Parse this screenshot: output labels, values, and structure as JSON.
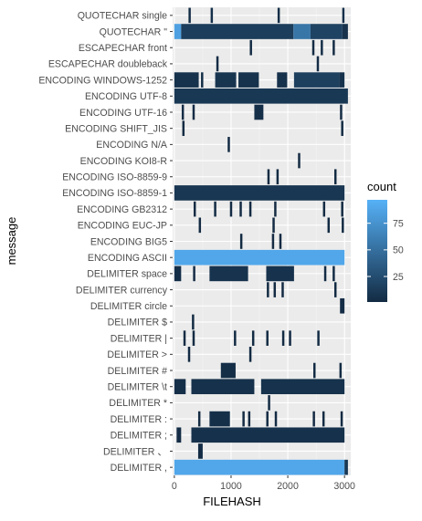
{
  "chart_data": {
    "type": "heatmap",
    "xlabel": "FILEHASH",
    "ylabel": "message",
    "xlim": [
      -30,
      3110
    ],
    "x_ticks": [
      0,
      1000,
      2000,
      3000
    ],
    "categories": [
      "QUOTECHAR single",
      "QUOTECHAR \"",
      "ESCAPECHAR front",
      "ESCAPECHAR doubleback",
      "ENCODING WINDOWS-1252",
      "ENCODING UTF-8",
      "ENCODING UTF-16",
      "ENCODING SHIFT_JIS",
      "ENCODING N/A",
      "ENCODING KOI8-R",
      "ENCODING ISO-8859-9",
      "ENCODING ISO-8859-1",
      "ENCODING GB2312",
      "ENCODING EUC-JP",
      "ENCODING BIG5",
      "ENCODING ASCII",
      "DELIMITER space",
      "DELIMITER currency",
      "DELIMITER circle",
      "DELIMITER $",
      "DELIMITER |",
      "DELIMITER >",
      "DELIMITER #",
      "DELIMITER \\t",
      "DELIMITER *",
      "DELIMITER :",
      "DELIMITER ;",
      "DELIMITER 、",
      "DELIMITER ,"
    ],
    "legend": {
      "title": "count",
      "breaks": [
        25,
        50,
        75
      ],
      "min": 1,
      "max": 97,
      "position": "right"
    },
    "colors": {
      "low": "#132B43",
      "high": "#56B1F7",
      "panel": "#EBEBEB",
      "grid_major": "#FFFFFF",
      "grid_minor": "#F4F4F4",
      "text": "#4D4D4D"
    },
    "cells": [
      {
        "row": 0,
        "x0": 250,
        "x1": 290,
        "count": 3
      },
      {
        "row": 0,
        "x0": 640,
        "x1": 680,
        "count": 4
      },
      {
        "row": 0,
        "x0": 1820,
        "x1": 1860,
        "count": 3
      },
      {
        "row": 0,
        "x0": 2960,
        "x1": 3000,
        "count": 4
      },
      {
        "row": 1,
        "x0": 0,
        "x1": 120,
        "count": 85
      },
      {
        "row": 1,
        "x0": 120,
        "x1": 2100,
        "count": 14
      },
      {
        "row": 1,
        "x0": 2100,
        "x1": 2400,
        "count": 55
      },
      {
        "row": 1,
        "x0": 2400,
        "x1": 2960,
        "count": 18
      },
      {
        "row": 1,
        "x0": 2960,
        "x1": 3060,
        "count": 6
      },
      {
        "row": 2,
        "x0": 1330,
        "x1": 1370,
        "count": 2
      },
      {
        "row": 2,
        "x0": 2430,
        "x1": 2470,
        "count": 2
      },
      {
        "row": 2,
        "x0": 2580,
        "x1": 2620,
        "count": 3
      },
      {
        "row": 2,
        "x0": 2790,
        "x1": 2830,
        "count": 2
      },
      {
        "row": 3,
        "x0": 740,
        "x1": 780,
        "count": 2
      },
      {
        "row": 3,
        "x0": 2510,
        "x1": 2550,
        "count": 2
      },
      {
        "row": 4,
        "x0": 0,
        "x1": 430,
        "count": 6
      },
      {
        "row": 4,
        "x0": 470,
        "x1": 510,
        "count": 3
      },
      {
        "row": 4,
        "x0": 720,
        "x1": 1090,
        "count": 8
      },
      {
        "row": 4,
        "x0": 1130,
        "x1": 1490,
        "count": 6
      },
      {
        "row": 4,
        "x0": 1810,
        "x1": 1990,
        "count": 5
      },
      {
        "row": 4,
        "x0": 2110,
        "x1": 2910,
        "count": 16
      },
      {
        "row": 4,
        "x0": 2910,
        "x1": 3000,
        "count": 5
      },
      {
        "row": 5,
        "x0": 0,
        "x1": 3060,
        "count": 10
      },
      {
        "row": 6,
        "x0": 130,
        "x1": 170,
        "count": 2
      },
      {
        "row": 6,
        "x0": 320,
        "x1": 360,
        "count": 2
      },
      {
        "row": 6,
        "x0": 1410,
        "x1": 1570,
        "count": 4
      },
      {
        "row": 6,
        "x0": 2920,
        "x1": 2960,
        "count": 2
      },
      {
        "row": 7,
        "x0": 140,
        "x1": 180,
        "count": 1
      },
      {
        "row": 7,
        "x0": 2940,
        "x1": 2980,
        "count": 1
      },
      {
        "row": 8,
        "x0": 940,
        "x1": 980,
        "count": 1
      },
      {
        "row": 9,
        "x0": 2180,
        "x1": 2220,
        "count": 1
      },
      {
        "row": 10,
        "x0": 1640,
        "x1": 1680,
        "count": 1
      },
      {
        "row": 10,
        "x0": 1800,
        "x1": 1840,
        "count": 1
      },
      {
        "row": 10,
        "x0": 2820,
        "x1": 2860,
        "count": 1
      },
      {
        "row": 11,
        "x0": 0,
        "x1": 3000,
        "count": 9
      },
      {
        "row": 12,
        "x0": 340,
        "x1": 380,
        "count": 1
      },
      {
        "row": 12,
        "x0": 700,
        "x1": 740,
        "count": 1
      },
      {
        "row": 12,
        "x0": 980,
        "x1": 1020,
        "count": 1
      },
      {
        "row": 12,
        "x0": 1150,
        "x1": 1190,
        "count": 1
      },
      {
        "row": 12,
        "x0": 1320,
        "x1": 1360,
        "count": 1
      },
      {
        "row": 12,
        "x0": 1760,
        "x1": 1800,
        "count": 1
      },
      {
        "row": 12,
        "x0": 2620,
        "x1": 2660,
        "count": 1
      },
      {
        "row": 12,
        "x0": 2940,
        "x1": 2980,
        "count": 1
      },
      {
        "row": 13,
        "x0": 430,
        "x1": 470,
        "count": 1
      },
      {
        "row": 13,
        "x0": 1730,
        "x1": 1770,
        "count": 1
      },
      {
        "row": 13,
        "x0": 2700,
        "x1": 2740,
        "count": 1
      },
      {
        "row": 13,
        "x0": 2950,
        "x1": 2990,
        "count": 1
      },
      {
        "row": 14,
        "x0": 1160,
        "x1": 1200,
        "count": 1
      },
      {
        "row": 14,
        "x0": 1720,
        "x1": 1760,
        "count": 1
      },
      {
        "row": 14,
        "x0": 1850,
        "x1": 1890,
        "count": 1
      },
      {
        "row": 15,
        "x0": 0,
        "x1": 3000,
        "count": 90
      },
      {
        "row": 16,
        "x0": 0,
        "x1": 120,
        "count": 3
      },
      {
        "row": 16,
        "x0": 330,
        "x1": 370,
        "count": 2
      },
      {
        "row": 16,
        "x0": 620,
        "x1": 1300,
        "count": 7
      },
      {
        "row": 16,
        "x0": 1620,
        "x1": 2110,
        "count": 6
      },
      {
        "row": 16,
        "x0": 2640,
        "x1": 2680,
        "count": 2
      },
      {
        "row": 16,
        "x0": 2790,
        "x1": 2830,
        "count": 2
      },
      {
        "row": 17,
        "x0": 1630,
        "x1": 1670,
        "count": 1
      },
      {
        "row": 17,
        "x0": 1750,
        "x1": 1790,
        "count": 1
      },
      {
        "row": 17,
        "x0": 1890,
        "x1": 1930,
        "count": 1
      },
      {
        "row": 17,
        "x0": 2820,
        "x1": 2860,
        "count": 1
      },
      {
        "row": 18,
        "x0": 2920,
        "x1": 3000,
        "count": 2
      },
      {
        "row": 19,
        "x0": 310,
        "x1": 350,
        "count": 1
      },
      {
        "row": 20,
        "x0": 160,
        "x1": 200,
        "count": 1
      },
      {
        "row": 20,
        "x0": 320,
        "x1": 360,
        "count": 1
      },
      {
        "row": 20,
        "x0": 1050,
        "x1": 1090,
        "count": 1
      },
      {
        "row": 20,
        "x0": 1370,
        "x1": 1410,
        "count": 1
      },
      {
        "row": 20,
        "x0": 1620,
        "x1": 1660,
        "count": 1
      },
      {
        "row": 20,
        "x0": 1900,
        "x1": 1940,
        "count": 1
      },
      {
        "row": 20,
        "x0": 2020,
        "x1": 2060,
        "count": 1
      },
      {
        "row": 20,
        "x0": 2520,
        "x1": 2560,
        "count": 1
      },
      {
        "row": 21,
        "x0": 240,
        "x1": 280,
        "count": 1
      },
      {
        "row": 21,
        "x0": 1320,
        "x1": 1360,
        "count": 1
      },
      {
        "row": 22,
        "x0": 820,
        "x1": 1080,
        "count": 3
      },
      {
        "row": 22,
        "x0": 2450,
        "x1": 2490,
        "count": 1
      },
      {
        "row": 22,
        "x0": 2910,
        "x1": 2950,
        "count": 1
      },
      {
        "row": 23,
        "x0": 0,
        "x1": 200,
        "count": 4
      },
      {
        "row": 23,
        "x0": 300,
        "x1": 1410,
        "count": 5
      },
      {
        "row": 23,
        "x0": 1530,
        "x1": 3000,
        "count": 6
      },
      {
        "row": 24,
        "x0": 1650,
        "x1": 1690,
        "count": 1
      },
      {
        "row": 25,
        "x0": 420,
        "x1": 460,
        "count": 1
      },
      {
        "row": 25,
        "x0": 620,
        "x1": 980,
        "count": 4
      },
      {
        "row": 25,
        "x0": 1200,
        "x1": 1240,
        "count": 1
      },
      {
        "row": 25,
        "x0": 1300,
        "x1": 1340,
        "count": 1
      },
      {
        "row": 25,
        "x0": 1620,
        "x1": 1660,
        "count": 1
      },
      {
        "row": 25,
        "x0": 1770,
        "x1": 1810,
        "count": 1
      },
      {
        "row": 25,
        "x0": 2440,
        "x1": 2480,
        "count": 1
      },
      {
        "row": 25,
        "x0": 2610,
        "x1": 2650,
        "count": 1
      },
      {
        "row": 25,
        "x0": 2930,
        "x1": 2970,
        "count": 1
      },
      {
        "row": 26,
        "x0": 40,
        "x1": 120,
        "count": 2
      },
      {
        "row": 26,
        "x0": 300,
        "x1": 3000,
        "count": 5
      },
      {
        "row": 27,
        "x0": 420,
        "x1": 500,
        "count": 2
      },
      {
        "row": 28,
        "x0": 0,
        "x1": 3000,
        "count": 90
      },
      {
        "row": 28,
        "x0": 3000,
        "x1": 3060,
        "count": 10
      }
    ]
  }
}
